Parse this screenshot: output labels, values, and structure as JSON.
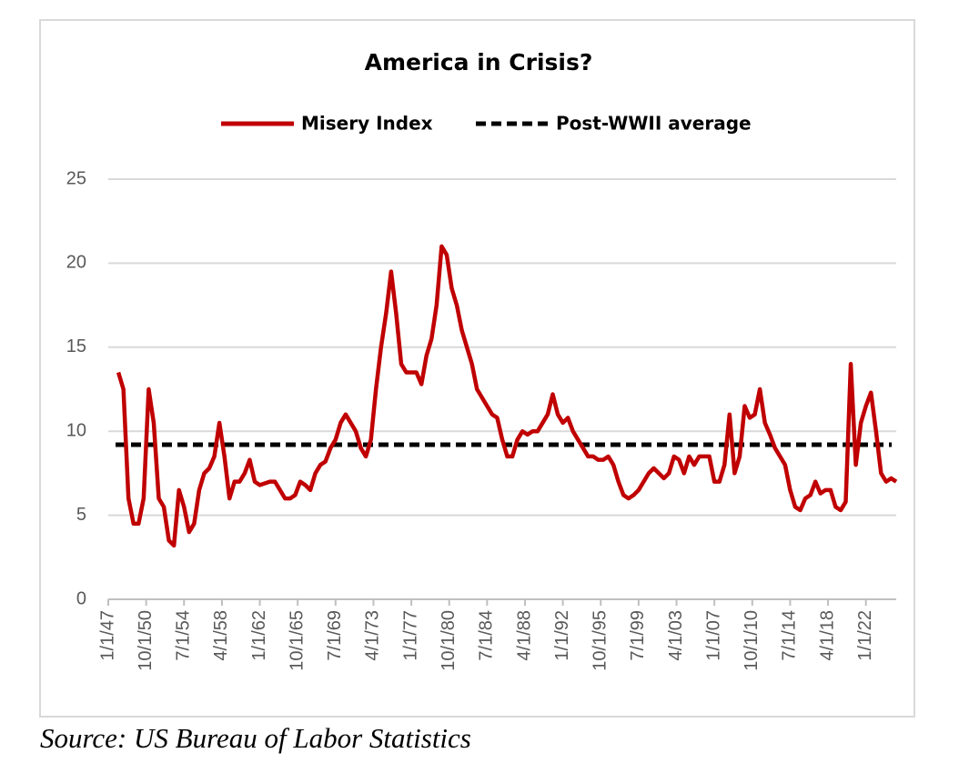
{
  "chart_data": {
    "type": "line",
    "title": "America in Crisis?",
    "source": "Source: US Bureau of Labor Statistics",
    "x": [
      "1/1/48",
      "7/1/48",
      "1/1/49",
      "7/1/49",
      "1/1/50",
      "7/1/50",
      "1/1/51",
      "7/1/51",
      "1/1/52",
      "7/1/52",
      "1/1/53",
      "7/1/53",
      "1/1/54",
      "7/1/54",
      "1/1/55",
      "7/1/55",
      "1/1/56",
      "7/1/56",
      "1/1/57",
      "7/1/57",
      "1/1/58",
      "7/1/58",
      "1/1/59",
      "7/1/59",
      "1/1/60",
      "7/1/60",
      "1/1/61",
      "7/1/61",
      "1/1/62",
      "7/1/62",
      "1/1/63",
      "7/1/63",
      "1/1/64",
      "7/1/64",
      "1/1/65",
      "7/1/65",
      "1/1/66",
      "7/1/66",
      "1/1/67",
      "7/1/67",
      "1/1/68",
      "7/1/68",
      "1/1/69",
      "7/1/69",
      "1/1/70",
      "7/1/70",
      "1/1/71",
      "7/1/71",
      "1/1/72",
      "7/1/72",
      "1/1/73",
      "7/1/73",
      "1/1/74",
      "7/1/74",
      "1/1/75",
      "7/1/75",
      "1/1/76",
      "7/1/76",
      "1/1/77",
      "7/1/77",
      "1/1/78",
      "7/1/78",
      "1/1/79",
      "7/1/79",
      "1/1/80",
      "7/1/80",
      "1/1/81",
      "7/1/81",
      "1/1/82",
      "7/1/82",
      "1/1/83",
      "7/1/83",
      "1/1/84",
      "7/1/84",
      "1/1/85",
      "7/1/85",
      "1/1/86",
      "7/1/86",
      "1/1/87",
      "7/1/87",
      "1/1/88",
      "7/1/88",
      "1/1/89",
      "7/1/89",
      "1/1/90",
      "7/1/90",
      "1/1/91",
      "7/1/91",
      "1/1/92",
      "7/1/92",
      "1/1/93",
      "7/1/93",
      "1/1/94",
      "7/1/94",
      "1/1/95",
      "7/1/95",
      "1/1/96",
      "7/1/96",
      "1/1/97",
      "7/1/97",
      "1/1/98",
      "7/1/98",
      "1/1/99",
      "7/1/99",
      "1/1/00",
      "7/1/00",
      "1/1/01",
      "7/1/01",
      "1/1/02",
      "7/1/02",
      "1/1/03",
      "7/1/03",
      "1/1/04",
      "7/1/04",
      "1/1/05",
      "7/1/05",
      "1/1/06",
      "7/1/06",
      "1/1/07",
      "7/1/07",
      "1/1/08",
      "7/1/08",
      "1/1/09",
      "7/1/09",
      "1/1/10",
      "7/1/10",
      "1/1/11",
      "7/1/11",
      "1/1/12",
      "7/1/12",
      "1/1/13",
      "7/1/13",
      "1/1/14",
      "7/1/14",
      "1/1/15",
      "7/1/15",
      "1/1/16",
      "7/1/16",
      "1/1/17",
      "7/1/17",
      "1/1/18",
      "7/1/18",
      "1/1/19",
      "7/1/19",
      "1/1/20",
      "7/1/20",
      "1/1/21",
      "7/1/21",
      "1/1/22",
      "7/1/22",
      "1/1/23",
      "7/1/23",
      "1/1/24",
      "7/1/24",
      "1/1/25"
    ],
    "series": [
      {
        "name": "Misery Index",
        "color": "#c00000",
        "values": [
          13.5,
          12.5,
          6.0,
          4.5,
          4.5,
          6,
          12.5,
          10.5,
          6,
          5.5,
          3.5,
          3.2,
          6.5,
          5.5,
          4,
          4.5,
          6.5,
          7.5,
          7.8,
          8.5,
          10.5,
          8.5,
          6,
          7,
          7,
          7.5,
          8.3,
          7,
          6.8,
          6.9,
          7,
          7,
          6.5,
          6,
          6,
          6.2,
          7,
          6.8,
          6.5,
          7.5,
          8,
          8.2,
          9,
          9.5,
          10.5,
          11,
          10.5,
          10,
          9,
          8.5,
          9.5,
          12.5,
          15,
          17,
          19.5,
          17,
          14,
          13.5,
          13.5,
          13.5,
          12.8,
          14.5,
          15.5,
          17.5,
          21,
          20.5,
          18.5,
          17.5,
          16,
          15,
          14,
          12.5,
          12,
          11.5,
          11,
          10.8,
          9.5,
          8.5,
          8.5,
          9.5,
          10,
          9.8,
          10,
          10,
          10.5,
          11,
          12.2,
          11,
          10.5,
          10.8,
          10,
          9.5,
          9,
          8.5,
          8.5,
          8.3,
          8.3,
          8.5,
          8,
          7,
          6.2,
          6.0,
          6.2,
          6.5,
          7,
          7.5,
          7.8,
          7.5,
          7.2,
          7.5,
          8.5,
          8.3,
          7.5,
          8.5,
          8,
          8.5,
          8.5,
          8.5,
          7,
          7,
          8,
          11,
          7.5,
          8.5,
          11.5,
          10.8,
          11,
          12.5,
          10.5,
          9.8,
          9,
          8.5,
          8,
          6.5,
          5.5,
          5.3,
          6,
          6.2,
          7,
          6.3,
          6.5,
          6.5,
          5.5,
          5.3,
          5.8,
          14,
          8,
          10.5,
          11.5,
          12.3,
          10,
          7.5,
          7,
          7.2,
          7
        ]
      }
    ],
    "reference_lines": [
      {
        "name": "Post-WWII average",
        "value": 9.2,
        "color": "#000000"
      }
    ],
    "xlim": [
      "1/1/47",
      "1/1/25"
    ],
    "xticks": [
      "1/1/47",
      "10/1/50",
      "7/1/54",
      "4/1/58",
      "1/1/62",
      "10/1/65",
      "7/1/69",
      "4/1/73",
      "1/1/77",
      "10/1/80",
      "7/1/84",
      "4/1/88",
      "1/1/92",
      "10/1/95",
      "7/1/99",
      "4/1/03",
      "1/1/07",
      "10/1/10",
      "7/1/14",
      "4/1/18",
      "1/1/22"
    ],
    "ylim": [
      0,
      25
    ],
    "yticks": [
      0,
      5,
      10,
      15,
      20,
      25
    ],
    "grid": true,
    "legend": "top"
  }
}
